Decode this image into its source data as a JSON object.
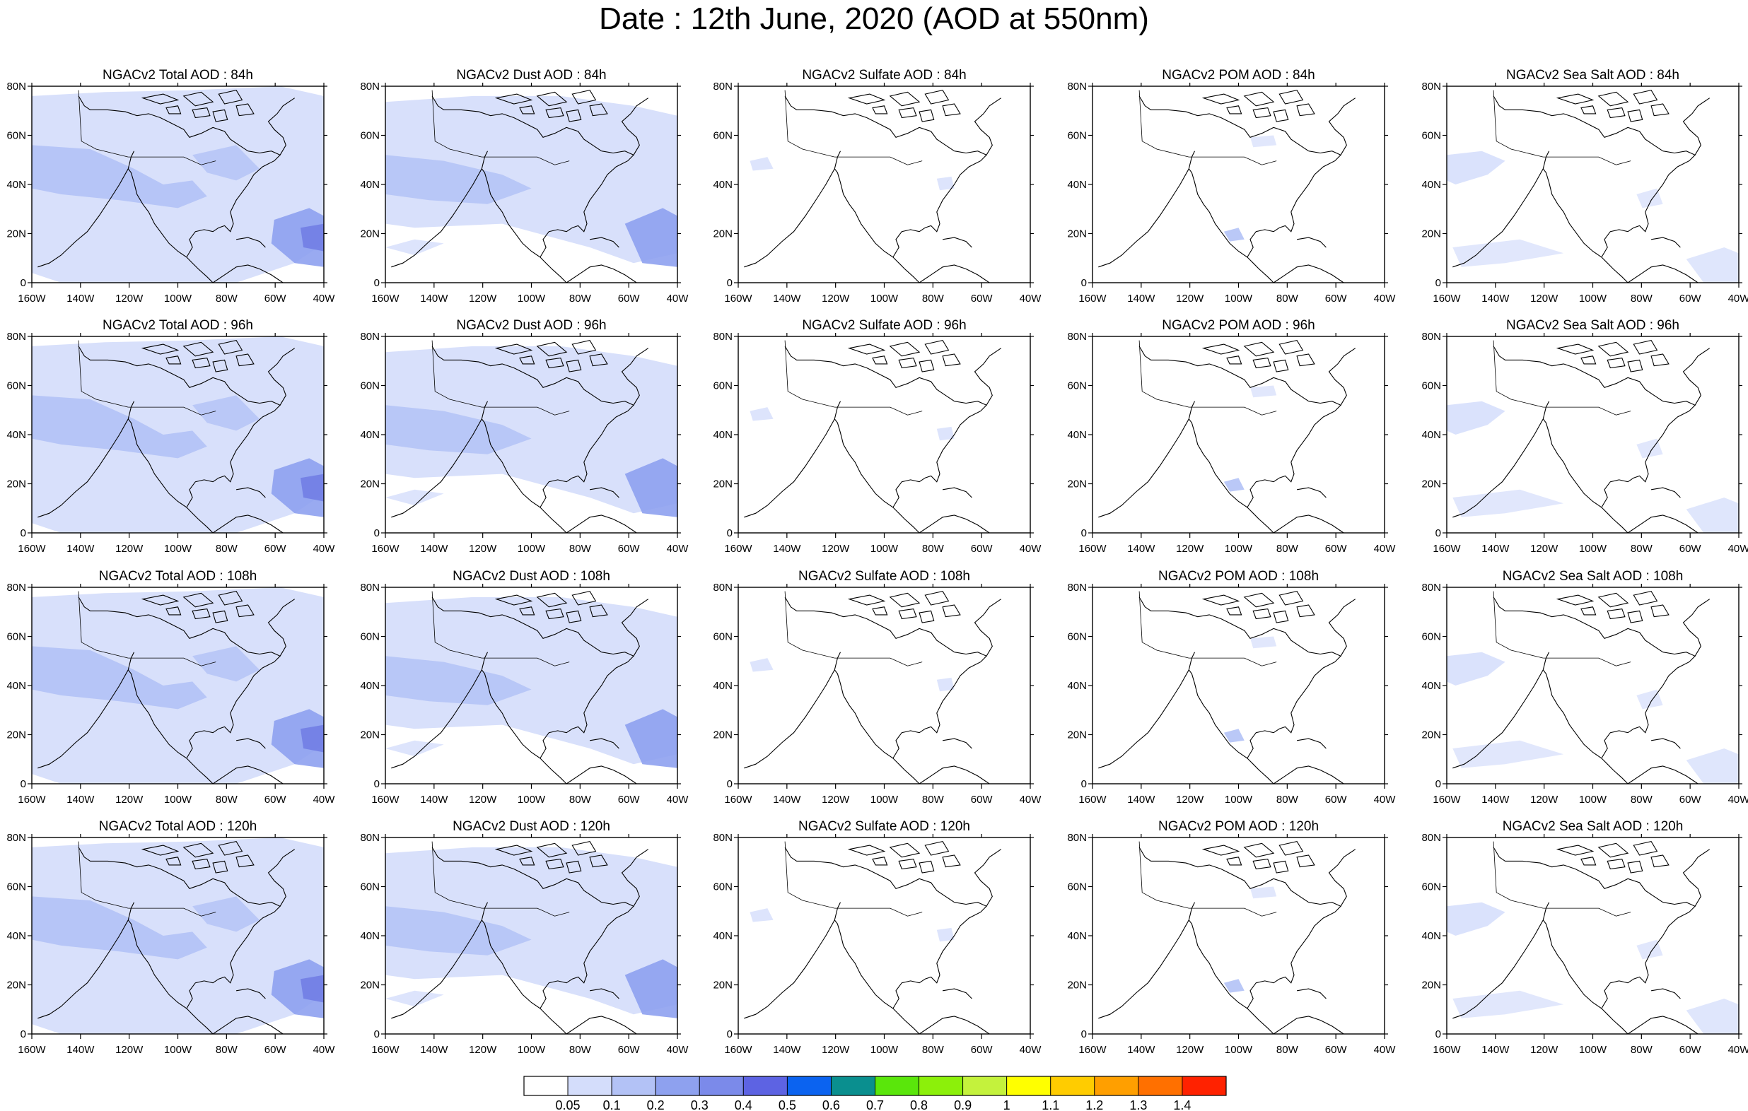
{
  "title": "Date : 12th June, 2020 (AOD at 550nm)",
  "lon_labels": [
    "160W",
    "140W",
    "120W",
    "100W",
    "80W",
    "60W",
    "40W"
  ],
  "lat_labels": [
    "0",
    "20N",
    "40N",
    "60N",
    "80N"
  ],
  "colors": {
    "frame": "#000000",
    "coast": "#000000",
    "pale": "#d4ddfb",
    "mid": "#b3c2f6",
    "strong": "#8ea1ef",
    "deep": "#6d79e4"
  },
  "rows": [
    {
      "hour": "84h",
      "panels": [
        {
          "key": "total",
          "title": "NGACv2 Total AOD : 84h"
        },
        {
          "key": "dust",
          "title": "NGACv2 Dust AOD : 84h"
        },
        {
          "key": "sulfate",
          "title": "NGACv2 Sulfate AOD : 84h"
        },
        {
          "key": "pom",
          "title": "NGACv2 POM AOD : 84h"
        },
        {
          "key": "seasalt",
          "title": "NGACv2 Sea Salt AOD : 84h"
        }
      ]
    },
    {
      "hour": "96h",
      "panels": [
        {
          "key": "total",
          "title": "NGACv2 Total AOD : 96h"
        },
        {
          "key": "dust",
          "title": "NGACv2 Dust AOD : 96h"
        },
        {
          "key": "sulfate",
          "title": "NGACv2 Sulfate AOD : 96h"
        },
        {
          "key": "pom",
          "title": "NGACv2 POM AOD : 96h"
        },
        {
          "key": "seasalt",
          "title": "NGACv2 Sea Salt AOD : 96h"
        }
      ]
    },
    {
      "hour": "108h",
      "panels": [
        {
          "key": "total",
          "title": "NGACv2 Total AOD : 108h"
        },
        {
          "key": "dust",
          "title": "NGACv2 Dust AOD : 108h"
        },
        {
          "key": "sulfate",
          "title": "NGACv2 Sulfate AOD : 108h"
        },
        {
          "key": "pom",
          "title": "NGACv2 POM AOD : 108h"
        },
        {
          "key": "seasalt",
          "title": "NGACv2 Sea Salt AOD : 108h"
        }
      ]
    },
    {
      "hour": "120h",
      "panels": [
        {
          "key": "total",
          "title": "NGACv2 Total AOD : 120h"
        },
        {
          "key": "dust",
          "title": "NGACv2 Dust AOD : 120h"
        },
        {
          "key": "sulfate",
          "title": "NGACv2 Sulfate AOD : 120h"
        },
        {
          "key": "pom",
          "title": "NGACv2 POM AOD : 120h"
        },
        {
          "key": "seasalt",
          "title": "NGACv2 Sea Salt  AOD : 120h"
        }
      ]
    }
  ],
  "colorbar": {
    "labels": [
      "0.05",
      "0.1",
      "0.2",
      "0.3",
      "0.4",
      "0.5",
      "0.6",
      "0.7",
      "0.8",
      "0.9",
      "1",
      "1.1",
      "1.2",
      "1.3",
      "1.4"
    ],
    "colors": [
      "#ffffff",
      "#d4ddfb",
      "#b3c2f6",
      "#8ea1ef",
      "#7b8aea",
      "#5d63e3",
      "#0b63f0",
      "#0a8f8f",
      "#5ae60b",
      "#8cf00a",
      "#c4f23c",
      "#ffff00",
      "#ffcc00",
      "#ff9f00",
      "#ff7000",
      "#ff2200"
    ]
  }
}
